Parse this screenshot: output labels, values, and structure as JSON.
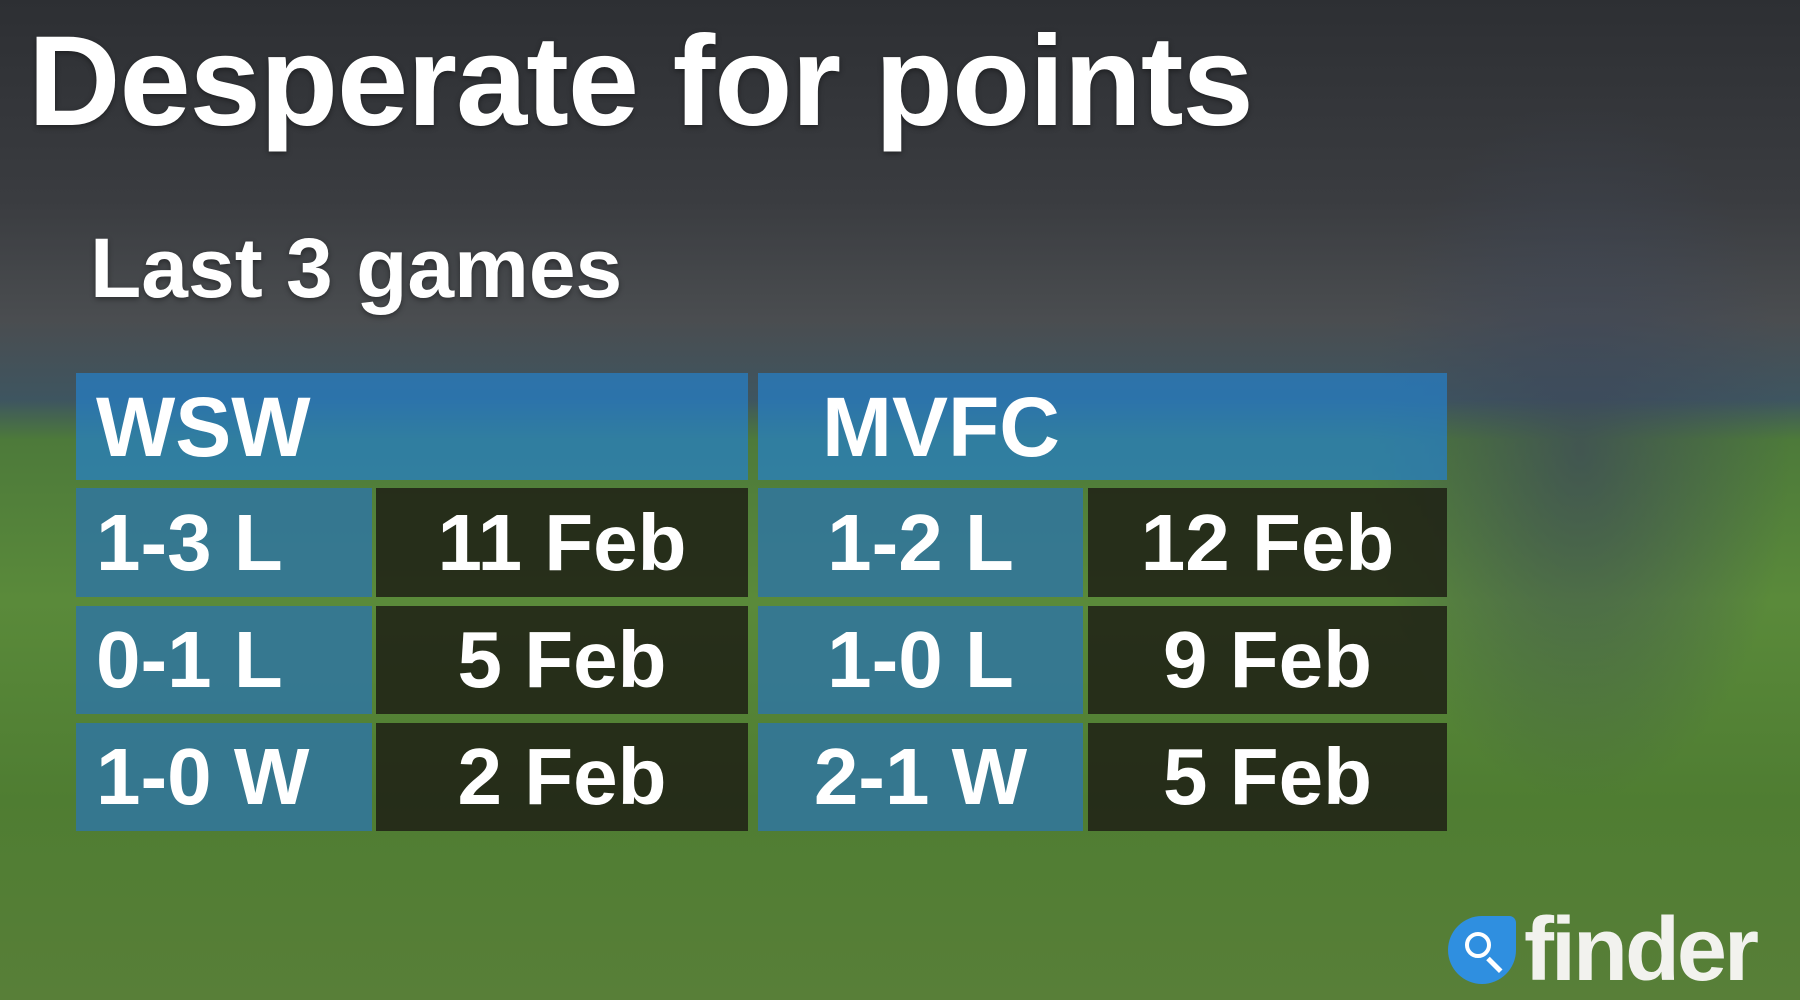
{
  "title": "Desperate for points",
  "subtitle": "Last 3 games",
  "teams": [
    {
      "name": "WSW",
      "games": [
        {
          "result": "1-3 L",
          "date": "11 Feb"
        },
        {
          "result": "0-1 L",
          "date": "5 Feb"
        },
        {
          "result": "1-0 W",
          "date": "2 Feb"
        }
      ]
    },
    {
      "name": "MVFC",
      "games": [
        {
          "result": "1-2 L",
          "date": "12 Feb"
        },
        {
          "result": "1-0 L",
          "date": "9 Feb"
        },
        {
          "result": "2-1 W",
          "date": "5 Feb"
        }
      ]
    }
  ],
  "logo": {
    "text": "finder",
    "icon": "search-icon",
    "color": "#2f8fe0"
  }
}
